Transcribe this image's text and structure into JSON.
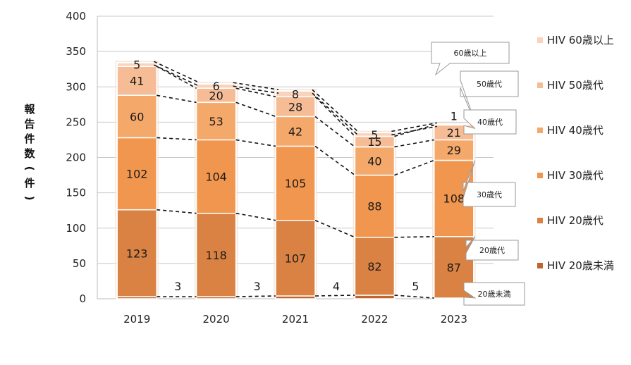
{
  "chart_data": {
    "type": "bar",
    "stacked": true,
    "categories": [
      "2019",
      "2020",
      "2021",
      "2022",
      "2023"
    ],
    "ylabel": "報告件数(件)",
    "ylim": [
      0,
      400
    ],
    "yticks": [
      0,
      50,
      100,
      150,
      200,
      250,
      300,
      350,
      400
    ],
    "grid": true,
    "legend_position": "right",
    "series": [
      {
        "name": "HIV 20歳未満",
        "color": "#c0652e",
        "values": [
          3,
          3,
          4,
          5,
          1
        ]
      },
      {
        "name": "HIV 20歳代",
        "color": "#d98243",
        "values": [
          123,
          118,
          107,
          82,
          87
        ]
      },
      {
        "name": "HIV 30歳代",
        "color": "#f0964e",
        "values": [
          102,
          104,
          105,
          88,
          108
        ]
      },
      {
        "name": "HIV 40歳代",
        "color": "#f4a86a",
        "values": [
          60,
          53,
          42,
          40,
          29
        ]
      },
      {
        "name": "HIV 50歳代",
        "color": "#f6bc96",
        "values": [
          41,
          20,
          28,
          15,
          21
        ]
      },
      {
        "name": "HIV 60歳以上",
        "color": "#f9d3bb",
        "values": [
          5,
          6,
          8,
          5,
          1
        ]
      }
    ],
    "annotations": [
      "60歳以上",
      "50歳代",
      "40歳代",
      "30歳代",
      "20歳代",
      "20歳未満"
    ]
  }
}
